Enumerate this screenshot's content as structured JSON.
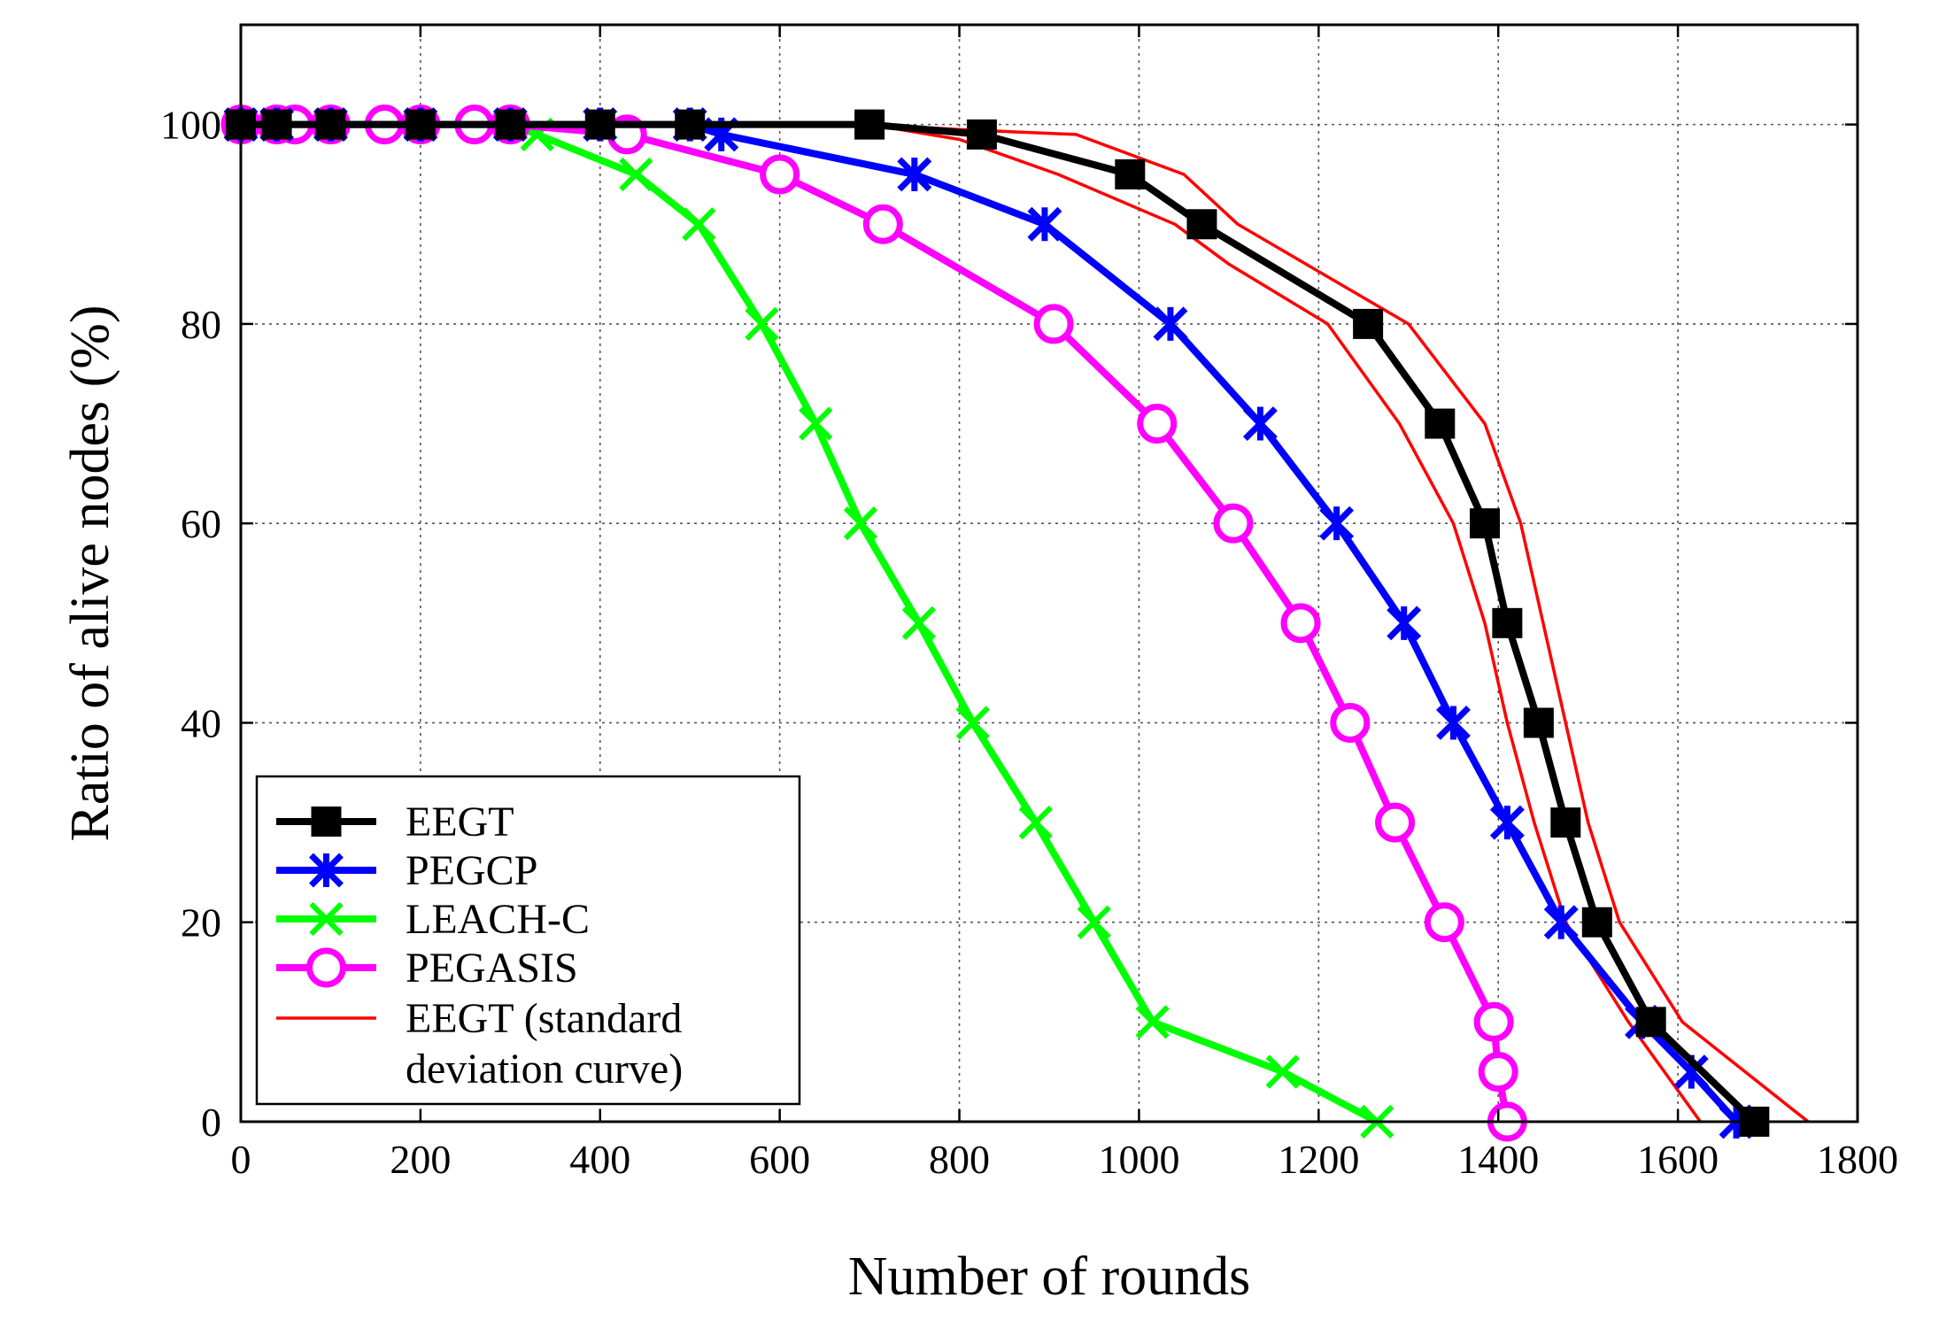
{
  "chart_data": {
    "type": "line",
    "title": "",
    "xlabel": "Number of rounds",
    "ylabel": "Ratio of alive nodes (%)",
    "xlim": [
      0,
      1800
    ],
    "ylim": [
      0,
      110
    ],
    "xticks": [
      0,
      200,
      400,
      600,
      800,
      1000,
      1200,
      1400,
      1600,
      1800
    ],
    "yticks": [
      0,
      20,
      40,
      60,
      80,
      100
    ],
    "grid": true,
    "legend_position": "bottom-left",
    "series": [
      {
        "name": "EEGT",
        "color": "#000000",
        "marker": "square",
        "points": [
          [
            0,
            100
          ],
          [
            40,
            100
          ],
          [
            100,
            100
          ],
          [
            200,
            100
          ],
          [
            300,
            100
          ],
          [
            400,
            100
          ],
          [
            500,
            100
          ],
          [
            700,
            100
          ],
          [
            825,
            99
          ],
          [
            990,
            95
          ],
          [
            1070,
            90
          ],
          [
            1255,
            80
          ],
          [
            1335,
            70
          ],
          [
            1385,
            60
          ],
          [
            1410,
            50
          ],
          [
            1445,
            40
          ],
          [
            1475,
            30
          ],
          [
            1510,
            20
          ],
          [
            1570,
            10
          ],
          [
            1685,
            0
          ]
        ]
      },
      {
        "name": "PEGCP",
        "color": "#0000ff",
        "marker": "asterisk",
        "points": [
          [
            0,
            100
          ],
          [
            40,
            100
          ],
          [
            100,
            100
          ],
          [
            200,
            100
          ],
          [
            300,
            100
          ],
          [
            400,
            100
          ],
          [
            500,
            100
          ],
          [
            535,
            99
          ],
          [
            750,
            95
          ],
          [
            895,
            90
          ],
          [
            1035,
            80
          ],
          [
            1135,
            70
          ],
          [
            1220,
            60
          ],
          [
            1295,
            50
          ],
          [
            1350,
            40
          ],
          [
            1410,
            30
          ],
          [
            1470,
            20
          ],
          [
            1560,
            10
          ],
          [
            1615,
            5
          ],
          [
            1665,
            0
          ]
        ]
      },
      {
        "name": "LEACH-C",
        "color": "#00ff00",
        "marker": "x",
        "points": [
          [
            0,
            100
          ],
          [
            100,
            100
          ],
          [
            200,
            100
          ],
          [
            300,
            100
          ],
          [
            330,
            99
          ],
          [
            440,
            95
          ],
          [
            510,
            90
          ],
          [
            580,
            80
          ],
          [
            640,
            70
          ],
          [
            690,
            60
          ],
          [
            755,
            50
          ],
          [
            815,
            40
          ],
          [
            885,
            30
          ],
          [
            950,
            20
          ],
          [
            1015,
            10
          ],
          [
            1160,
            5
          ],
          [
            1265,
            0
          ]
        ]
      },
      {
        "name": "PEGASIS",
        "color": "#ff00ff",
        "marker": "circle",
        "points": [
          [
            0,
            100
          ],
          [
            40,
            100
          ],
          [
            60,
            100
          ],
          [
            100,
            100
          ],
          [
            160,
            100
          ],
          [
            200,
            100
          ],
          [
            260,
            100
          ],
          [
            300,
            100
          ],
          [
            430,
            99
          ],
          [
            600,
            95
          ],
          [
            715,
            90
          ],
          [
            905,
            80
          ],
          [
            1020,
            70
          ],
          [
            1105,
            60
          ],
          [
            1180,
            50
          ],
          [
            1235,
            40
          ],
          [
            1285,
            30
          ],
          [
            1340,
            20
          ],
          [
            1395,
            10
          ],
          [
            1400,
            5
          ],
          [
            1410,
            0
          ]
        ]
      },
      {
        "name": "EEGT (standard deviation curve)",
        "color": "#ff0000",
        "marker": "none",
        "points": [
          [
            700,
            100
          ],
          [
            800,
            99.5
          ],
          [
            930,
            99
          ],
          [
            1050,
            95
          ],
          [
            1110,
            90
          ],
          [
            1300,
            80
          ],
          [
            1385,
            70
          ],
          [
            1425,
            60
          ],
          [
            1450,
            50
          ],
          [
            1475,
            40
          ],
          [
            1500,
            30
          ],
          [
            1535,
            20
          ],
          [
            1605,
            10
          ],
          [
            1745,
            0
          ]
        ]
      },
      {
        "name": "",
        "color": "#ff0000",
        "marker": "none",
        "points": [
          [
            700,
            100
          ],
          [
            800,
            98.5
          ],
          [
            910,
            95
          ],
          [
            1040,
            90
          ],
          [
            1100,
            86
          ],
          [
            1210,
            80
          ],
          [
            1290,
            70
          ],
          [
            1350,
            60
          ],
          [
            1385,
            50
          ],
          [
            1410,
            40
          ],
          [
            1440,
            30
          ],
          [
            1475,
            20
          ],
          [
            1545,
            10
          ],
          [
            1625,
            0
          ]
        ]
      }
    ],
    "legend_lines": [
      "EEGT",
      "PEGCP",
      "LEACH-C",
      "PEGASIS",
      "EEGT (standard",
      "deviation curve)"
    ]
  }
}
